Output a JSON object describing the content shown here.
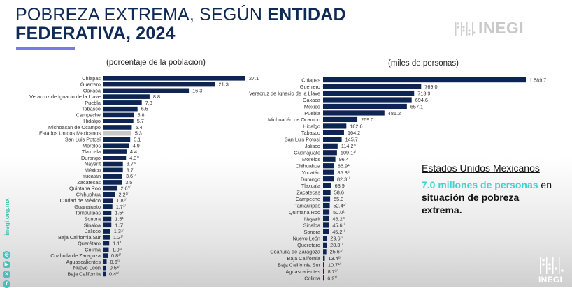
{
  "header": {
    "title_normal": "POBREZA EXTREMA, SEGÚN ",
    "title_bold_1": "ENTIDAD",
    "title_bold_2": "FEDERATIVA, 2024"
  },
  "logo": {
    "text": "INEGI",
    "icon": "inegi-logo-icon"
  },
  "social": {
    "url": "inegi.org.mx",
    "icons": [
      "instagram-icon",
      "youtube-icon",
      "x-icon",
      "facebook-icon"
    ]
  },
  "callout": {
    "heading": "Estados Unidos Mexicanos",
    "highlight": "7.0 millones de personas",
    "rest_1": " en ",
    "rest_bold": "situación de pobreza extrema."
  },
  "colors": {
    "bar": "#0e2452",
    "national_bar": "#c8c8c8",
    "accent": "#7b78e6",
    "highlight": "#3dd4cf"
  },
  "chart_data": [
    {
      "type": "bar",
      "orientation": "horizontal",
      "title": "(porcentaje de la población)",
      "xlabel": "",
      "ylabel": "",
      "xlim": [
        0,
        27.1
      ],
      "grid": false,
      "categories": [
        "Chiapas",
        "Guerrero",
        "Oaxaca",
        "Veracruz de Ignacio de la Llave",
        "Puebla",
        "Tabasco",
        "Campeche",
        "Hidalgo",
        "Michoacán de Ocampo",
        "Estados Unidos Mexicanos",
        "San Luis Potosí",
        "Morelos",
        "Tlaxcala",
        "Durango",
        "Nayarit",
        "México",
        "Yucatán",
        "Zacatecas",
        "Quintana Roo",
        "Chihuahua",
        "Ciudad de México",
        "Guanajuato",
        "Tamaulipas",
        "Sonora",
        "Sinaloa",
        "Jalisco",
        "Baja California Sur",
        "Querétaro",
        "Colima",
        "Coahuila de Zaragoza",
        "Aguascalientes",
        "Nuevo León",
        "Baja California"
      ],
      "values": [
        27.1,
        21.3,
        16.3,
        8.8,
        7.3,
        6.5,
        5.8,
        5.7,
        5.4,
        5.3,
        5.1,
        4.9,
        4.4,
        4.3,
        3.7,
        3.7,
        3.6,
        3.5,
        2.6,
        2.2,
        1.8,
        1.7,
        1.5,
        1.5,
        1.5,
        1.3,
        1.2,
        1.1,
        1.0,
        0.8,
        0.6,
        0.5,
        0.4
      ],
      "labels": [
        "27.1",
        "21.3",
        "16.3",
        "8.8",
        "7.3",
        "6.5",
        "5.8",
        "5.7",
        "5.4",
        "5.3",
        "5.1",
        "4.9",
        "4.4",
        "4.3",
        "3.7",
        "3.7",
        "3.6",
        "3.5",
        "2.6",
        "2.2",
        "1.8",
        "1.7",
        "1.5",
        "1.5",
        "1.5",
        "1.3",
        "1.2",
        "1.1",
        "1.0",
        "0.8",
        "0.6",
        "0.5",
        "0.4"
      ],
      "footnotes": [
        "",
        "",
        "",
        "",
        "",
        "",
        "",
        "",
        "",
        "",
        "",
        "",
        "",
        "1/",
        "2/",
        "",
        "1/",
        "",
        "1/",
        "1/",
        "1/",
        "1/",
        "1/",
        "1/",
        "1/",
        "1/",
        "1/",
        "1/",
        "1/",
        "1/",
        "1/",
        "1/",
        "2/"
      ],
      "highlight_index": 9
    },
    {
      "type": "bar",
      "orientation": "horizontal",
      "title": "(miles de personas)",
      "xlabel": "",
      "ylabel": "",
      "xlim": [
        0,
        1589.7
      ],
      "grid": false,
      "categories": [
        "Chiapas",
        "Guerrero",
        "Veracruz de Ignacio de la Llave",
        "Oaxaca",
        "México",
        "Puebla",
        "Michoacán de Ocampo",
        "Hidalgo",
        "Tabasco",
        "San Luis Potosí",
        "Jalisco",
        "Guanajuato",
        "Morelos",
        "Chihuahua",
        "Yucatán",
        "Durango",
        "Tlaxcala",
        "Zacatecas",
        "Campeche",
        "Tamaulipas",
        "Quintana Roo",
        "Nayarit",
        "Sinaloa",
        "Sonora",
        "Nuevo León",
        "Querétaro",
        "Coahuila de Zaragoza",
        "Baja California",
        "Baja California Sur",
        "Aguascalientes",
        "Colima"
      ],
      "values": [
        1589.7,
        769.0,
        713.9,
        694.6,
        657.1,
        481.2,
        269.0,
        182.6,
        164.2,
        145.7,
        114.2,
        109.1,
        96.4,
        86.9,
        85.3,
        82.3,
        63.9,
        58.6,
        55.3,
        52.4,
        50.0,
        46.2,
        45.6,
        45.2,
        29.6,
        28.3,
        25.6,
        13.4,
        10.7,
        8.7,
        6.9
      ],
      "labels": [
        "1 589.7",
        "769.0",
        "713.9",
        "694.6",
        "657.1",
        "481.2",
        "269.0",
        "182.6",
        "164.2",
        "145.7",
        "114.2",
        "109.1",
        "96.4",
        "86.9",
        "85.3",
        "82.3",
        "63.9",
        "58.6",
        "55.3",
        "52.4",
        "50.0",
        "46.2",
        "45.6",
        "45.2",
        "29.6",
        "28.3",
        "25.6",
        "13.4",
        "10.7",
        "8.7",
        "6.9"
      ],
      "footnotes": [
        "",
        "",
        "",
        "",
        "",
        "",
        "",
        "",
        "",
        "",
        "1/",
        "1/",
        "",
        "1/",
        "1/",
        "1/",
        "",
        "",
        "",
        "1/",
        "1/",
        "2/",
        "1/",
        "1/",
        "1/",
        "1/",
        "1/",
        "2/",
        "1/",
        "1/",
        "1/"
      ],
      "highlight_index": -1
    }
  ]
}
